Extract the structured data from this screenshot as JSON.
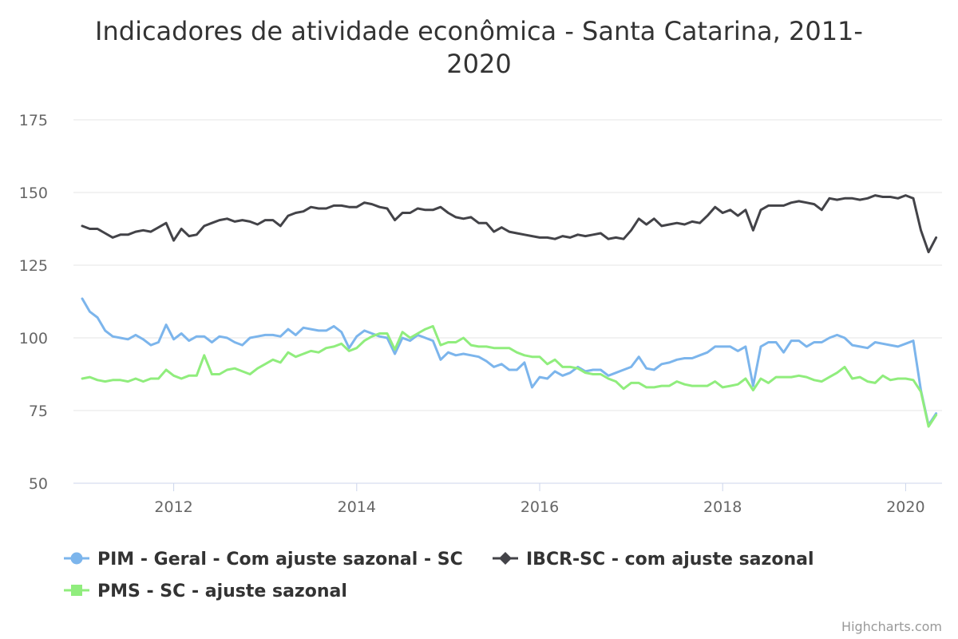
{
  "chart_data": {
    "type": "line",
    "title_line1": "Indicadores de atividade econômica - Santa Catarina, 2011-",
    "title_line2": "2020",
    "x_start": "2011-01",
    "y_ticks": [
      50,
      75,
      100,
      125,
      150,
      175
    ],
    "ylim": [
      50,
      175
    ],
    "x_ticks": [
      "2012",
      "2014",
      "2016",
      "2018",
      "2020"
    ],
    "x_tick_dates": [
      "2012-01",
      "2014-01",
      "2016-01",
      "2018-01",
      "2020-01"
    ],
    "grid": true,
    "legend_position": "bottom",
    "credits": "Highcharts.com",
    "series": [
      {
        "name": "PIM - Geral - Com ajuste sazonal - SC",
        "color": "#7cb5ec",
        "marker": "circle",
        "values": [
          113.5,
          109,
          107,
          102.5,
          100.5,
          100,
          99.5,
          101,
          99.5,
          97.5,
          98.5,
          104.5,
          99.5,
          101.5,
          99,
          100.5,
          100.5,
          98.5,
          100.5,
          100,
          98.5,
          97.5,
          100,
          100.5,
          101,
          101,
          100.5,
          103,
          101,
          103.5,
          103,
          102.5,
          102.5,
          104,
          102,
          96.5,
          100.5,
          102.5,
          101.5,
          100.5,
          100,
          94.5,
          100,
          99,
          101,
          100,
          99,
          92.5,
          95,
          94,
          94.5,
          94,
          93.5,
          92,
          90,
          91,
          89,
          89,
          91.5,
          83,
          86.5,
          86,
          88.5,
          87,
          88,
          90,
          88.5,
          89,
          89,
          87,
          88,
          89,
          90,
          93.5,
          89.5,
          89,
          91,
          91.5,
          92.5,
          93,
          93,
          94,
          95,
          97,
          97,
          97,
          95.5,
          97,
          83.5,
          97,
          98.5,
          98.5,
          95,
          99,
          99,
          97,
          98.5,
          98.5,
          100,
          101,
          100,
          97.5,
          97,
          96.5,
          98.5,
          98,
          97.5,
          97,
          98,
          99,
          82,
          70,
          74
        ]
      },
      {
        "name": "IBCR-SC - com ajuste sazonal",
        "color": "#434348",
        "marker": "diamond",
        "values": [
          138.5,
          137.5,
          137.5,
          136,
          134.5,
          135.5,
          135.5,
          136.5,
          137,
          136.5,
          138,
          139.5,
          133.5,
          137.5,
          135,
          135.5,
          138.5,
          139.5,
          140.5,
          141,
          140,
          140.5,
          140,
          139,
          140.5,
          140.5,
          138.5,
          142,
          143,
          143.5,
          145,
          144.5,
          144.5,
          145.5,
          145.5,
          145,
          145,
          146.5,
          146,
          145,
          144.5,
          140.5,
          143,
          143,
          144.5,
          144,
          144,
          145,
          143,
          141.5,
          141,
          141.5,
          139.5,
          139.5,
          136.5,
          138,
          136.5,
          136,
          135.5,
          135,
          134.5,
          134.5,
          134,
          135,
          134.5,
          135.5,
          135,
          135.5,
          136,
          134,
          134.5,
          134,
          137,
          141,
          139,
          141,
          138.5,
          139,
          139.5,
          139,
          140,
          139.5,
          142,
          145,
          143,
          144,
          142,
          144,
          137,
          144,
          145.5,
          145.5,
          145.5,
          146.5,
          147,
          146.5,
          146,
          144,
          148,
          147.5,
          148,
          148,
          147.5,
          148,
          149,
          148.5,
          148.5,
          148,
          149,
          148,
          137,
          129.5,
          134.5
        ]
      },
      {
        "name": "PMS - SC - ajuste sazonal",
        "color": "#90ed7d",
        "marker": "square",
        "values": [
          86,
          86.5,
          85.5,
          85,
          85.5,
          85.5,
          85,
          86,
          85,
          86,
          86,
          89,
          87,
          86,
          87,
          87,
          94,
          87.5,
          87.5,
          89,
          89.5,
          88.5,
          87.5,
          89.5,
          91,
          92.5,
          91.5,
          95,
          93.5,
          94.5,
          95.5,
          95,
          96.5,
          97,
          98,
          95.5,
          96.5,
          99,
          100.5,
          101.5,
          101.5,
          96,
          102,
          100,
          101.5,
          103,
          104,
          97.5,
          98.5,
          98.5,
          100,
          97.5,
          97,
          97,
          96.5,
          96.5,
          96.5,
          95,
          94,
          93.5,
          93.5,
          91,
          92.5,
          90,
          90,
          89.5,
          88,
          87.5,
          87.5,
          86,
          85,
          82.5,
          84.5,
          84.5,
          83,
          83,
          83.5,
          83.5,
          85,
          84,
          83.5,
          83.5,
          83.5,
          85,
          83,
          83.5,
          84,
          86,
          82,
          86,
          84.5,
          86.5,
          86.5,
          86.5,
          87,
          86.5,
          85.5,
          85,
          86.5,
          88,
          90,
          86,
          86.5,
          85,
          84.5,
          87,
          85.5,
          86,
          86,
          85.5,
          81.5,
          69.5,
          73.5
        ]
      }
    ]
  }
}
